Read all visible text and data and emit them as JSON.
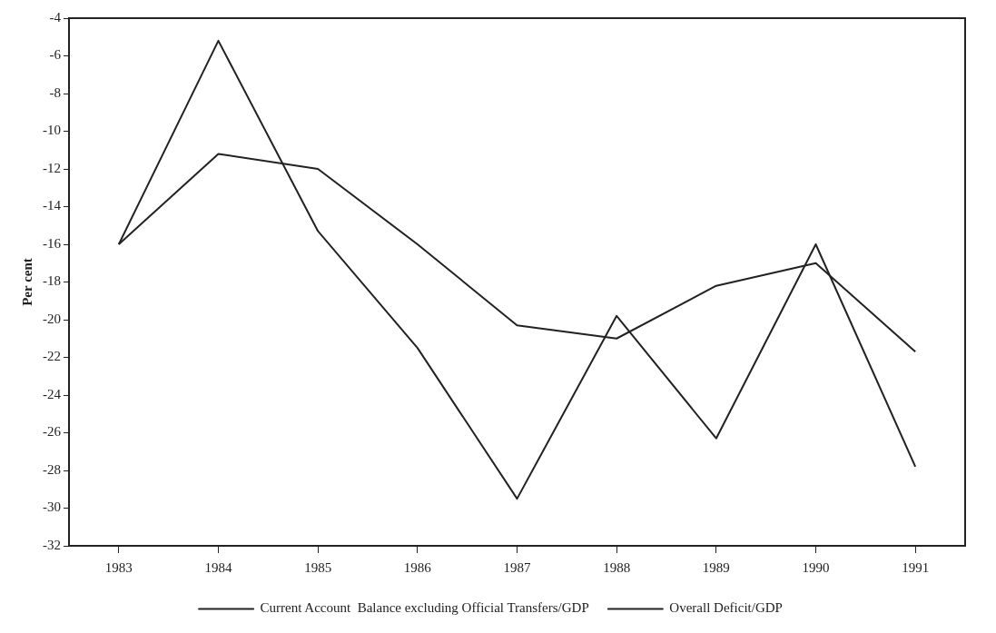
{
  "chart_data": {
    "type": "line",
    "ylabel": "Per cent",
    "categories": [
      "1983",
      "1984",
      "1985",
      "1986",
      "1987",
      "1988",
      "1989",
      "1990",
      "1991"
    ],
    "series": [
      {
        "name": "Current Account  Balance excluding Official Transfers/GDP",
        "color": "#222222",
        "values": [
          -16,
          -5.2,
          -15.3,
          -21.5,
          -29.5,
          -19.8,
          -26.3,
          -16,
          -27.8
        ]
      },
      {
        "name": "Overall Deficit/GDP",
        "color": "#222222",
        "values": [
          -16,
          -11.2,
          -12,
          -16,
          -20.3,
          -21,
          -18.2,
          -17,
          -21.7
        ]
      }
    ],
    "ylim": [
      -32,
      -4
    ],
    "yticks": [
      -32,
      -30,
      -28,
      -26,
      -24,
      -22,
      -20,
      -18,
      -16,
      -14,
      -12,
      -10,
      -8,
      -6,
      -4
    ],
    "grid": false,
    "legend": "bottom",
    "line_style": "solid"
  }
}
